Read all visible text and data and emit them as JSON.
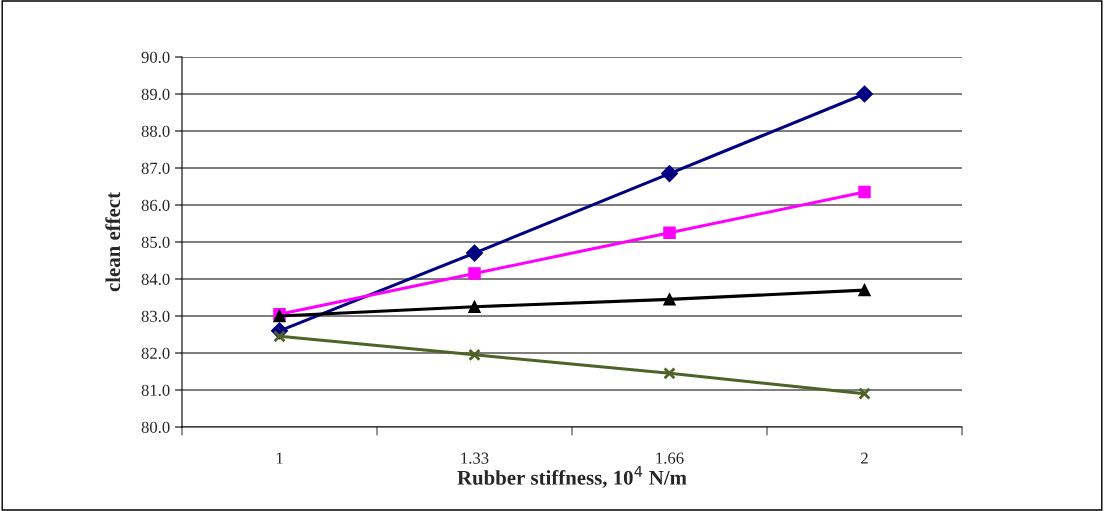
{
  "chart_data": {
    "type": "line",
    "xlabel": "Rubber stiffness, 10$^{4}$ N/m",
    "ylabel": "clean effect",
    "categories": [
      "1",
      "1.33",
      "1.66",
      "2"
    ],
    "series": [
      {
        "color": "#000080",
        "marker": "diamond",
        "values": [
          82.6,
          84.7,
          86.85,
          89.0
        ]
      },
      {
        "color": "#ff00ff",
        "marker": "square",
        "values": [
          83.05,
          84.15,
          85.25,
          86.35
        ]
      },
      {
        "color": "#000000",
        "marker": "triangle",
        "values": [
          83.0,
          83.25,
          83.45,
          83.7
        ]
      },
      {
        "color": "#4f6228",
        "marker": "cross",
        "values": [
          82.45,
          81.95,
          81.45,
          80.9
        ]
      }
    ],
    "ylim": [
      80,
      90
    ],
    "yticks": [
      {
        "value": 80,
        "label": "80.0"
      },
      {
        "value": 81,
        "label": "81.0"
      },
      {
        "value": 82,
        "label": "82.0"
      },
      {
        "value": 83,
        "label": "83.0"
      },
      {
        "value": 84,
        "label": "84.0"
      },
      {
        "value": 85,
        "label": "85.0"
      },
      {
        "value": 86,
        "label": "86.0"
      },
      {
        "value": 87,
        "label": "87.0"
      },
      {
        "value": 88,
        "label": "88.0"
      },
      {
        "value": 89,
        "label": "89.0"
      },
      {
        "value": 90,
        "label": "90.0"
      }
    ],
    "grid": "y",
    "line_style": "solid"
  }
}
